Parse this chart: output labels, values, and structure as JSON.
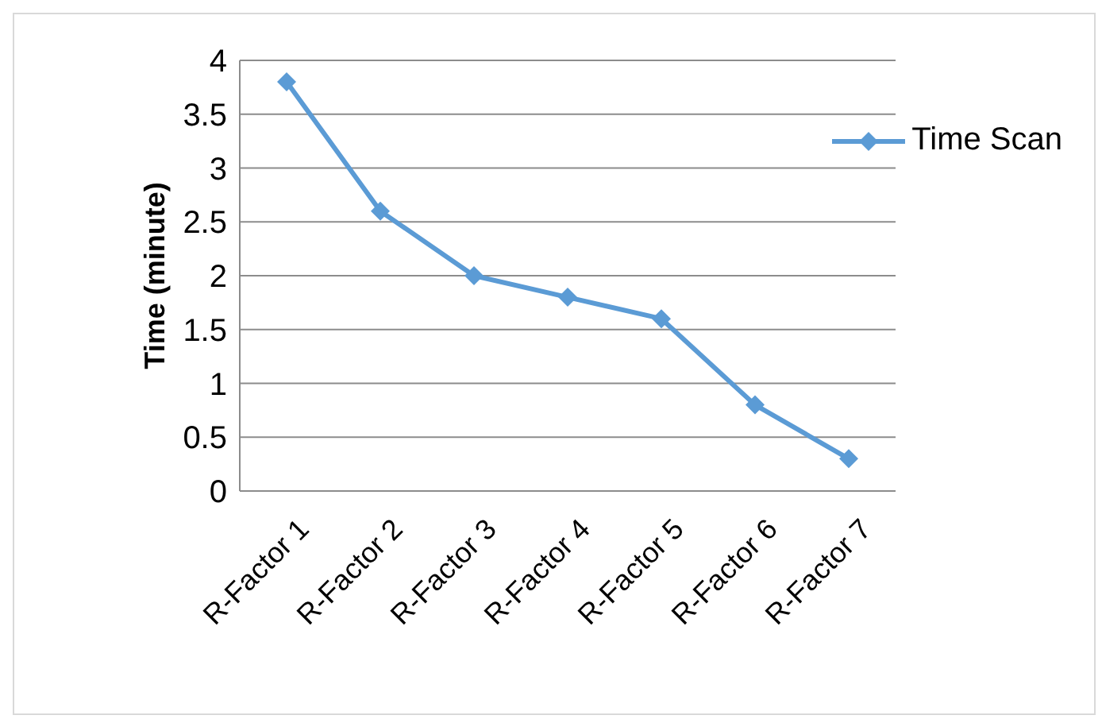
{
  "chart_data": {
    "type": "line",
    "ylabel": "Time (minute)",
    "categories": [
      "R-Factor 1",
      "R-Factor 2",
      "R-Factor 3",
      "R-Factor 4",
      "R-Factor 5",
      "R-Factor 6",
      "R-Factor 7"
    ],
    "series": [
      {
        "name": "Time Scan",
        "color": "#5b9bd5",
        "values": [
          3.8,
          2.6,
          2.0,
          1.8,
          1.6,
          0.8,
          0.3
        ]
      }
    ],
    "ylim": [
      0,
      4
    ],
    "yticks": [
      0,
      0.5,
      1,
      1.5,
      2,
      2.5,
      3,
      3.5,
      4
    ],
    "grid": "y",
    "legend": "top right",
    "marker": "diamond",
    "line_style": "solid"
  }
}
